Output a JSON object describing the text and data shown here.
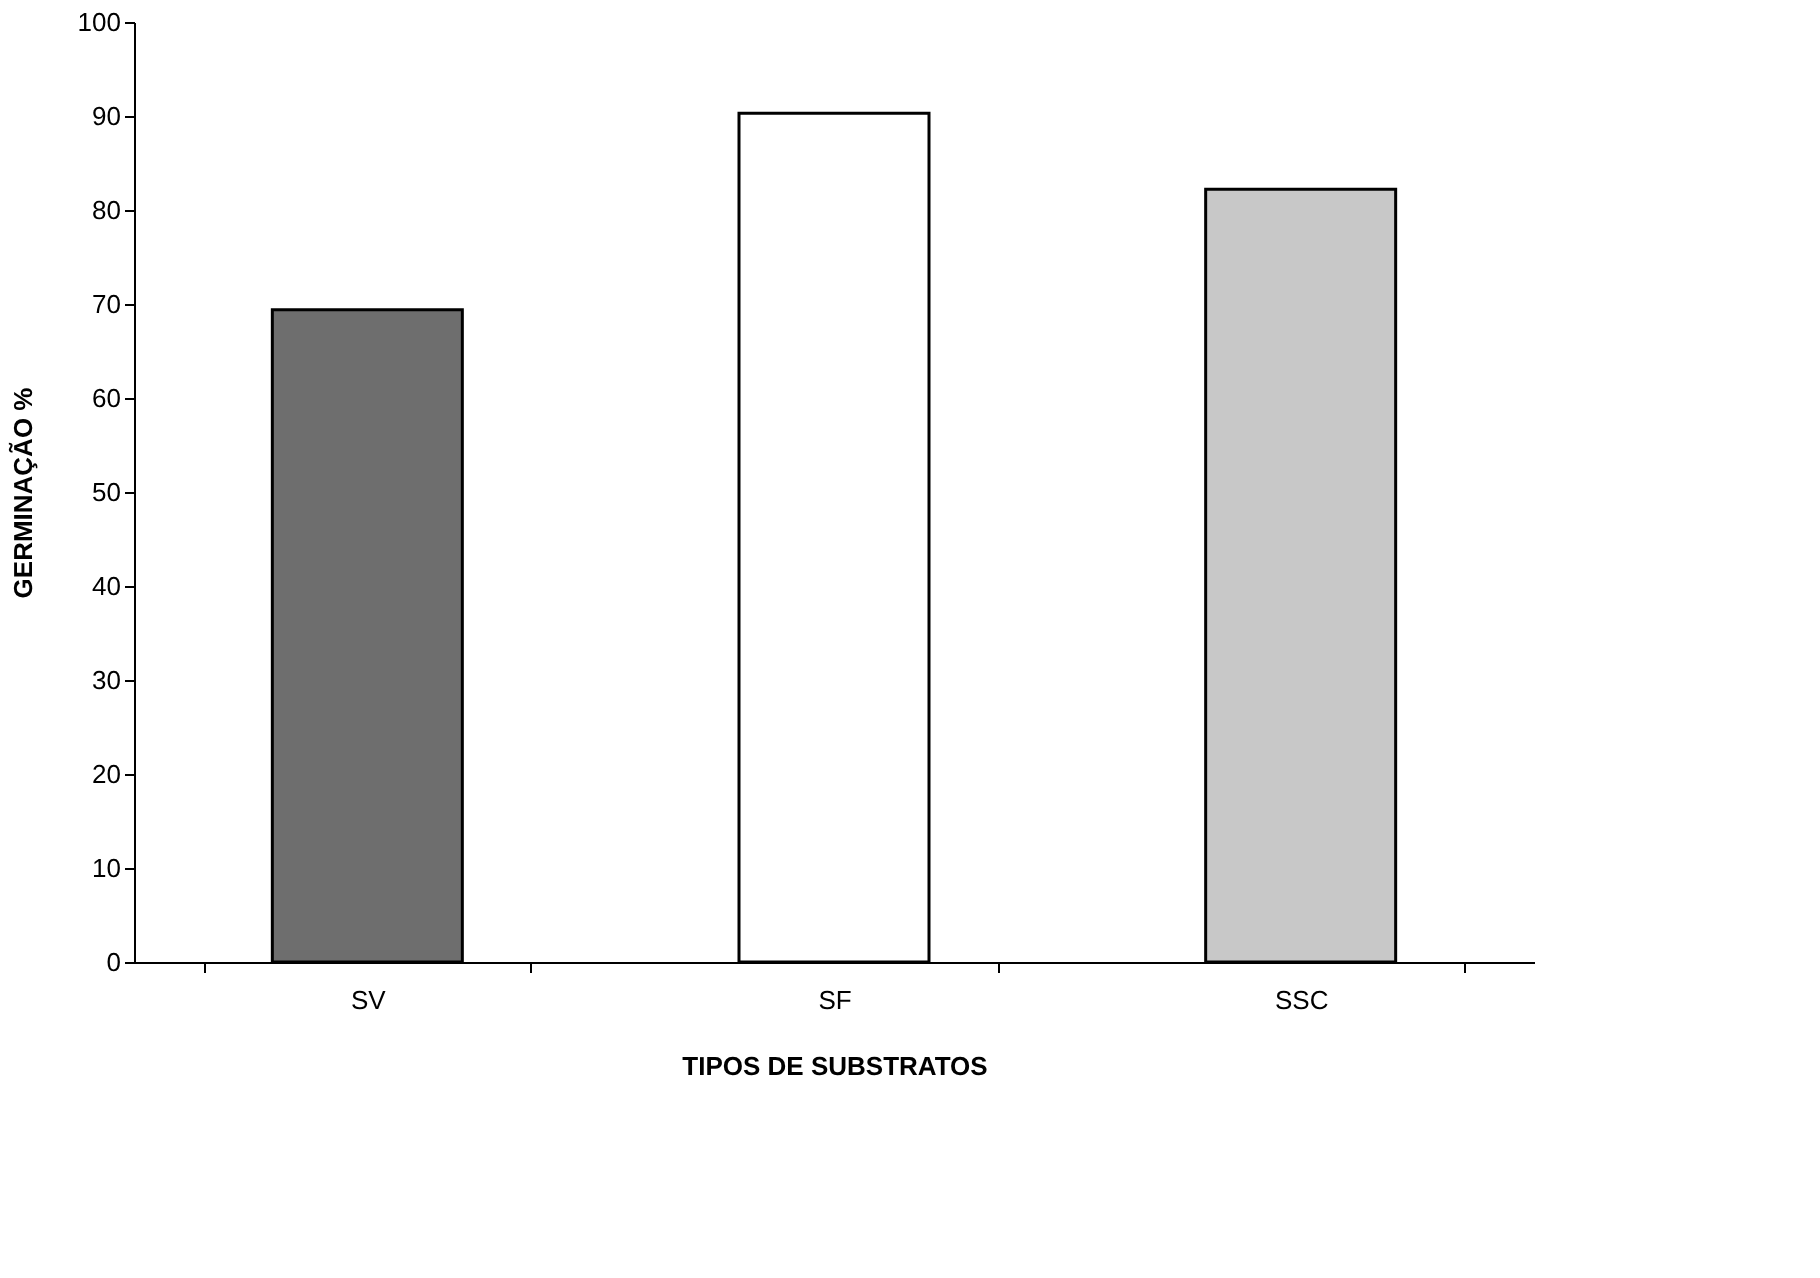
{
  "chart_data": {
    "type": "bar",
    "xlabel": "TIPOS DE SUBSTRATOS",
    "ylabel": "GERMINAÇÃO %",
    "categories": [
      "SV",
      "SF",
      "SSC"
    ],
    "values": [
      69.4,
      90.3,
      82.2
    ],
    "colors": [
      "#6e6e6e",
      "#ffffff",
      "#c8c8c8"
    ],
    "ylim": [
      0,
      100
    ],
    "yticks": [
      0,
      10,
      20,
      30,
      40,
      50,
      60,
      70,
      80,
      90,
      100
    ],
    "grid": false
  }
}
